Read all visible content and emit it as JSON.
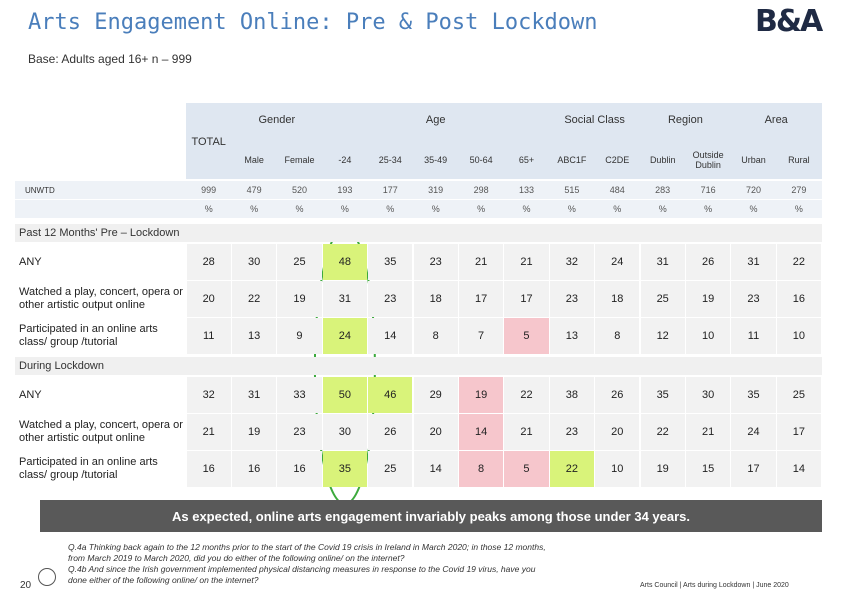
{
  "header": {
    "title": "Arts Engagement Online: Pre & Post Lockdown",
    "logo": "B&A",
    "base": "Base: Adults aged 16+ n – 999"
  },
  "table": {
    "total_label": "TOTAL",
    "groups": [
      {
        "label": "Gender",
        "from": 1,
        "to": 2
      },
      {
        "label": "Age",
        "from": 3,
        "to": 7
      },
      {
        "label": "Social Class",
        "from": 8,
        "to": 9
      },
      {
        "label": "Region",
        "from": 10,
        "to": 11
      },
      {
        "label": "Area",
        "from": 12,
        "to": 13
      }
    ],
    "columns": [
      "Male",
      "Female",
      "-24",
      "25-34",
      "35-49",
      "50-64",
      "65+",
      "ABC1F",
      "C2DE",
      "Dublin",
      "Outside Dublin",
      "Urban",
      "Rural"
    ],
    "base_rows": [
      {
        "label": "UNWTD",
        "values": [
          999,
          479,
          520,
          193,
          177,
          319,
          298,
          133,
          515,
          484,
          283,
          716,
          720,
          279
        ]
      },
      {
        "values": [
          "%",
          "%",
          "%",
          "%",
          "%",
          "%",
          "%",
          "%",
          "%",
          "%",
          "%",
          "%",
          "%",
          "%"
        ]
      }
    ],
    "sections": [
      {
        "title": "Past 12 Months' Pre – Lockdown",
        "rows": [
          {
            "label": "ANY",
            "values": [
              28,
              30,
              25,
              48,
              35,
              23,
              21,
              21,
              32,
              24,
              31,
              26,
              31,
              22
            ],
            "highlights": [
              {
                "col": 3,
                "color": "#d9f37a"
              }
            ]
          },
          {
            "label": "Watched a play, concert, opera or other artistic output online",
            "values": [
              20,
              22,
              19,
              31,
              23,
              18,
              17,
              17,
              23,
              18,
              25,
              19,
              23,
              16
            ],
            "highlights": []
          },
          {
            "label": "Participated in an online arts class/ group /tutorial",
            "values": [
              11,
              13,
              9,
              24,
              14,
              8,
              7,
              5,
              13,
              8,
              12,
              10,
              11,
              10
            ],
            "highlights": [
              {
                "col": 3,
                "color": "#d9f37a"
              },
              {
                "col": 7,
                "color": "#f6c6cc"
              }
            ]
          }
        ]
      },
      {
        "title": "During Lockdown",
        "rows": [
          {
            "label": "ANY",
            "values": [
              32,
              31,
              33,
              50,
              46,
              29,
              19,
              22,
              38,
              26,
              35,
              30,
              35,
              25
            ],
            "highlights": [
              {
                "col": 3,
                "color": "#d9f37a"
              },
              {
                "col": 4,
                "color": "#d9f37a"
              },
              {
                "col": 6,
                "color": "#f6c6cc"
              }
            ]
          },
          {
            "label": "Watched a play, concert, opera or other artistic output online",
            "values": [
              21,
              19,
              23,
              30,
              26,
              20,
              14,
              21,
              23,
              20,
              22,
              21,
              24,
              17
            ],
            "highlights": [
              {
                "col": 6,
                "color": "#f6c6cc"
              }
            ]
          },
          {
            "label": "Participated in an online arts class/ group /tutorial",
            "values": [
              16,
              16,
              16,
              35,
              25,
              14,
              8,
              5,
              22,
              10,
              19,
              15,
              17,
              14
            ],
            "highlights": [
              {
                "col": 3,
                "color": "#d9f37a"
              },
              {
                "col": 6,
                "color": "#f6c6cc"
              },
              {
                "col": 7,
                "color": "#f6c6cc"
              },
              {
                "col": 8,
                "color": "#d9f37a"
              }
            ]
          }
        ]
      }
    ]
  },
  "summary": "As expected, online arts engagement invariably peaks among those under 34 years.",
  "footnote": [
    "Q.4a Thinking back again to the 12 months prior to the start of the Covid 19 crisis in Ireland in March 2020; in those 12 months, from March 2019 to March 2020, did you do either of the following online/ on the internet?",
    "Q.4b And since the Irish government implemented physical distancing measures in response to the Covid 19 virus, have you done either of the following online/ on the internet?"
  ],
  "footer": {
    "page": "20",
    "source": "Arts Council | Arts during Lockdown | June 2020"
  }
}
